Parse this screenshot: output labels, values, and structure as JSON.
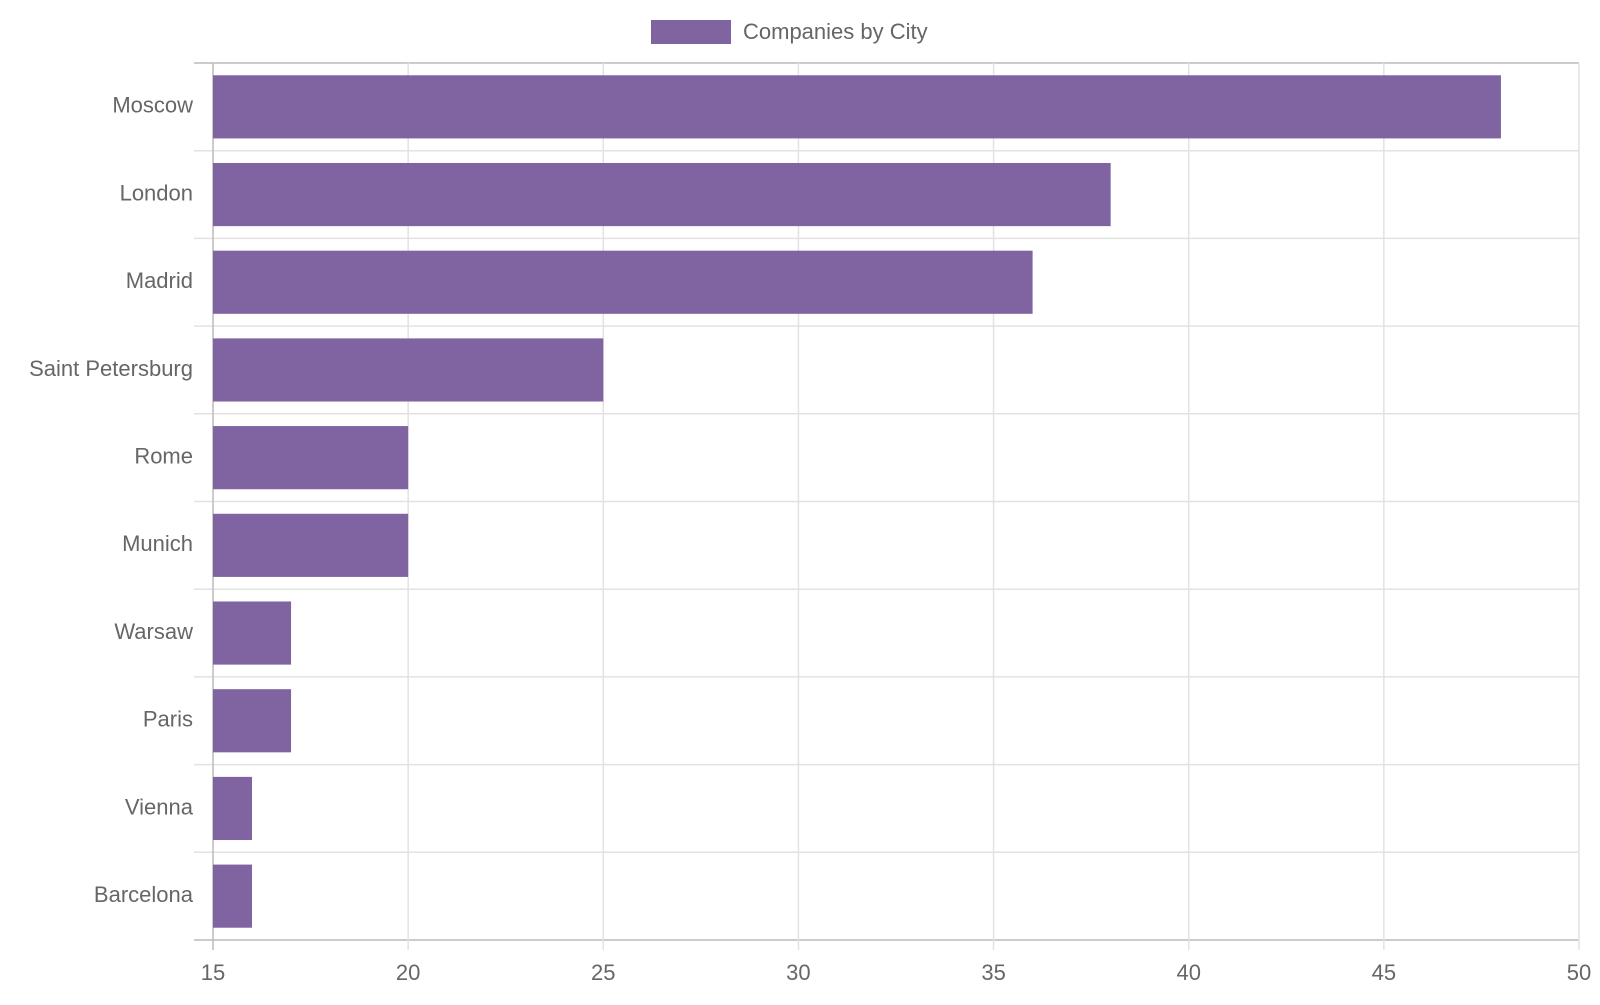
{
  "chart_data": {
    "type": "bar",
    "orientation": "horizontal",
    "categories": [
      "Moscow",
      "London",
      "Madrid",
      "Saint Petersburg",
      "Rome",
      "Munich",
      "Warsaw",
      "Paris",
      "Vienna",
      "Barcelona"
    ],
    "series": [
      {
        "name": "Companies by City",
        "color": "#8064a2",
        "values": [
          48,
          38,
          36,
          25,
          20,
          20,
          17,
          17,
          16,
          16
        ]
      }
    ],
    "xlim": [
      15,
      50
    ],
    "xticks": [
      15,
      20,
      25,
      30,
      35,
      40,
      45,
      50
    ],
    "grid": true,
    "legend": "top"
  }
}
